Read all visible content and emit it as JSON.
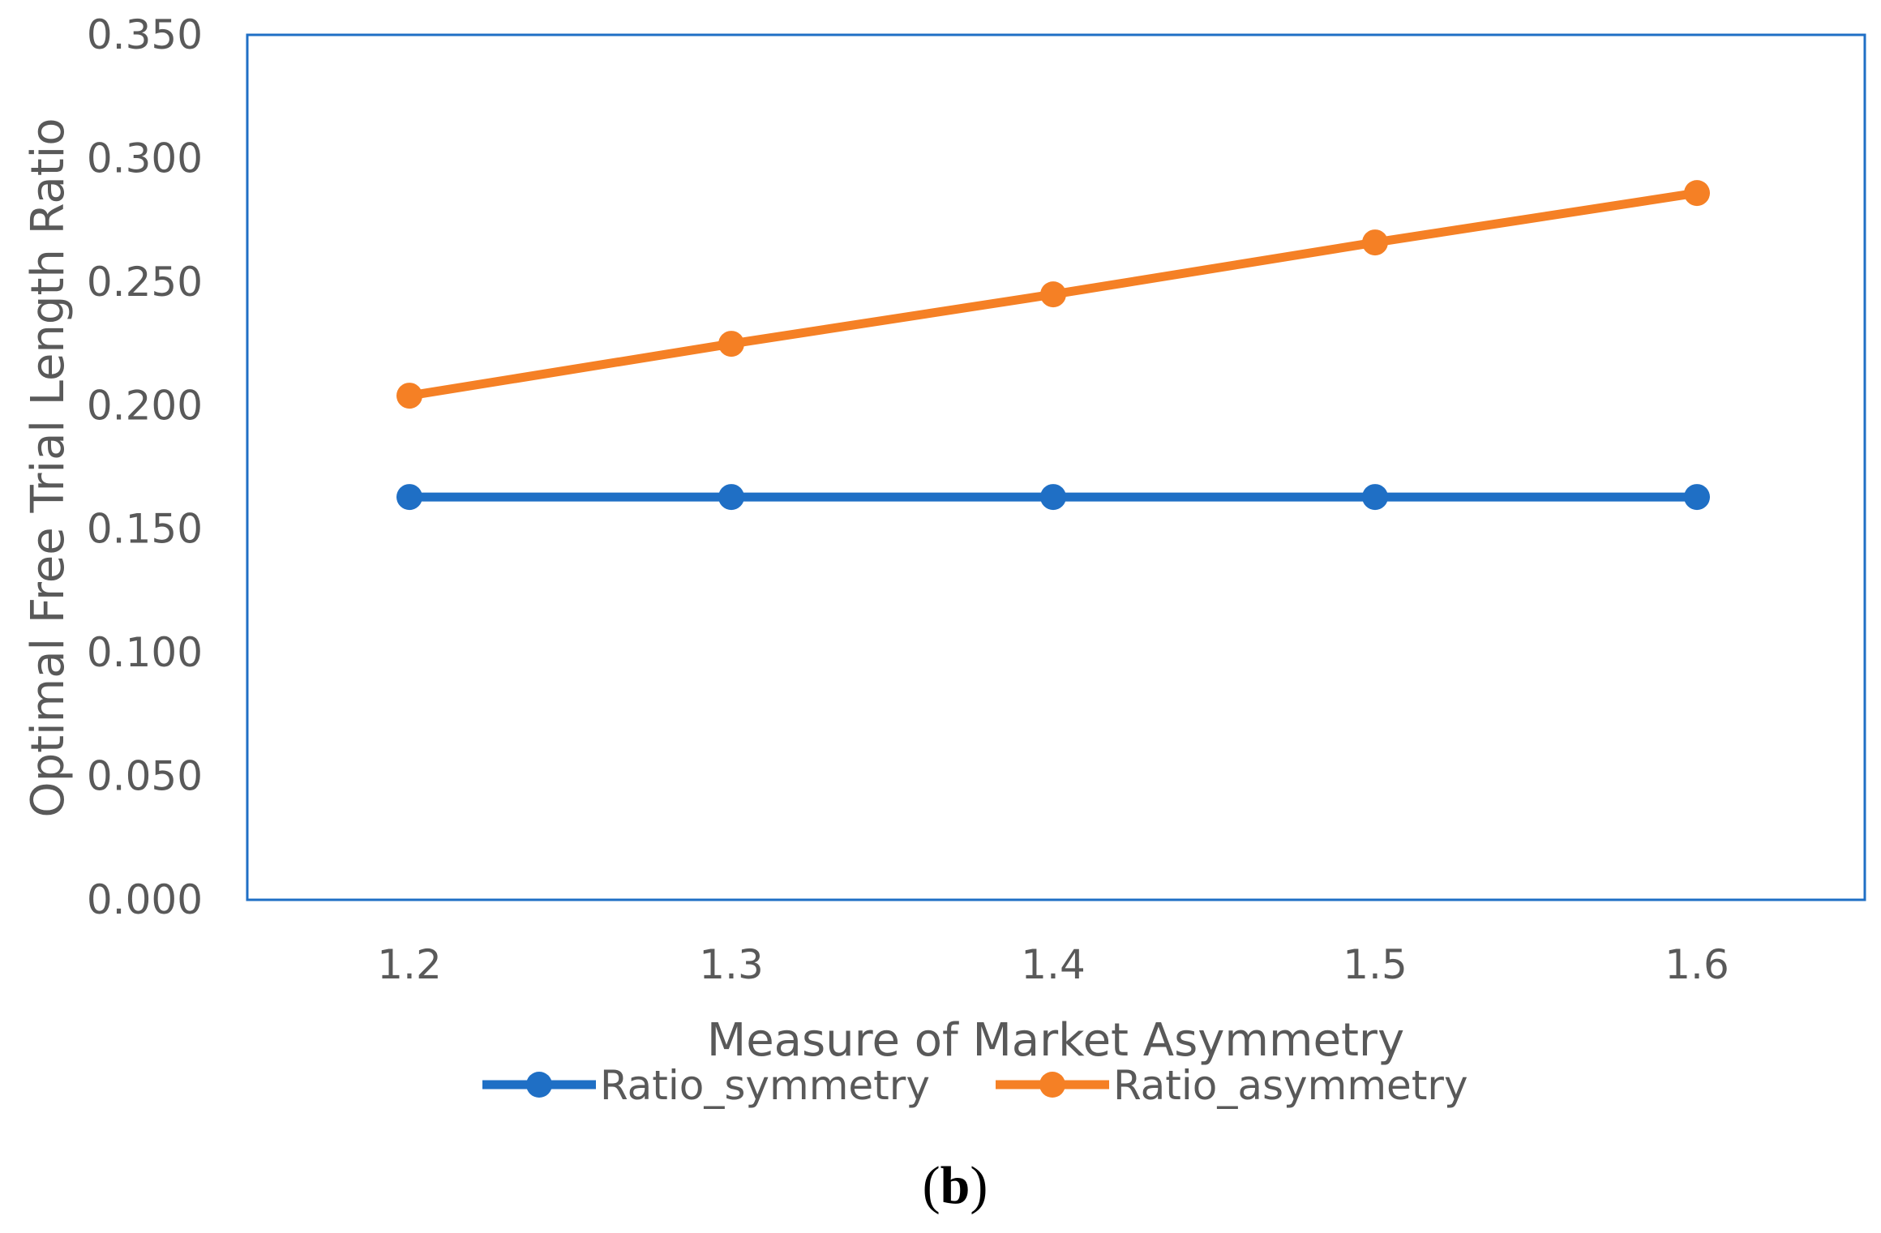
{
  "chart_data": {
    "type": "line",
    "x": [
      1.2,
      1.3,
      1.4,
      1.5,
      1.6
    ],
    "x_tick_labels": [
      "1.2",
      "1.3",
      "1.4",
      "1.5",
      "1.6"
    ],
    "series": [
      {
        "name": "Ratio_symmetry",
        "color": "#1F6FC5",
        "values": [
          0.163,
          0.163,
          0.163,
          0.163,
          0.163
        ]
      },
      {
        "name": "Ratio_asymmetry",
        "color": "#F58025",
        "values": [
          0.204,
          0.225,
          0.245,
          0.266,
          0.286
        ]
      }
    ],
    "ylim": [
      0,
      0.35
    ],
    "y_ticks": [
      0,
      0.05,
      0.1,
      0.15,
      0.2,
      0.25,
      0.3,
      0.35
    ],
    "y_tick_labels": [
      "0.000",
      "0.050",
      "0.100",
      "0.150",
      "0.200",
      "0.250",
      "0.300",
      "0.350"
    ],
    "xlabel": "Measure of Market Asymmetry",
    "ylabel": "Optimal Free Trial Length Ratio",
    "title": "",
    "grid": false,
    "legend_position": "bottom-center",
    "panel_label": "(b)",
    "frame_color": "#1F6FC5"
  }
}
